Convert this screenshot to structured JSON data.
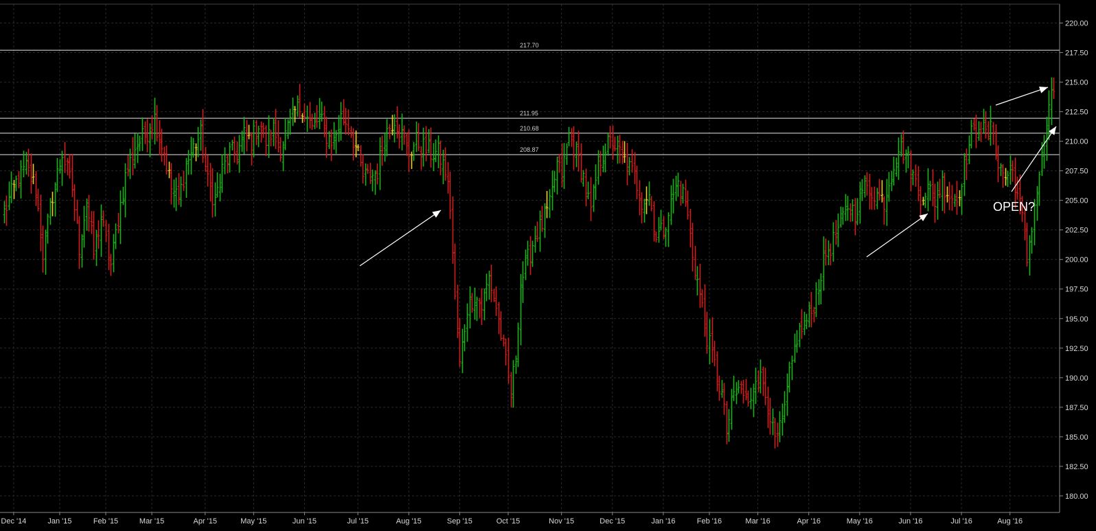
{
  "chart_data": {
    "type": "ohlc",
    "title": "",
    "xlabel": "",
    "ylabel": "",
    "ylim": [
      178.6,
      221.6
    ],
    "y_ticks": [
      "180.00",
      "182.50",
      "185.00",
      "187.50",
      "190.00",
      "192.50",
      "195.00",
      "197.50",
      "200.00",
      "202.50",
      "205.00",
      "207.50",
      "210.00",
      "212.50",
      "215.00",
      "217.50",
      "220.00"
    ],
    "x_ticks": [
      {
        "label": "Dec '14",
        "index": 4
      },
      {
        "label": "Jan '15",
        "index": 23
      },
      {
        "label": "Feb '15",
        "index": 42
      },
      {
        "label": "Mar '15",
        "index": 61
      },
      {
        "label": "Apr '15",
        "index": 83
      },
      {
        "label": "May '15",
        "index": 103
      },
      {
        "label": "Jun '15",
        "index": 124
      },
      {
        "label": "Jul '15",
        "index": 146
      },
      {
        "label": "Aug '15",
        "index": 167
      },
      {
        "label": "Sep '15",
        "index": 188
      },
      {
        "label": "Oct '15",
        "index": 208
      },
      {
        "label": "Nov '15",
        "index": 230
      },
      {
        "label": "Dec '15",
        "index": 251
      },
      {
        "label": "Jan '16",
        "index": 272
      },
      {
        "label": "Feb '16",
        "index": 291
      },
      {
        "label": "Mar '16",
        "index": 311
      },
      {
        "label": "Apr '16",
        "index": 332
      },
      {
        "label": "May '16",
        "index": 353
      },
      {
        "label": "Jun '16",
        "index": 374
      },
      {
        "label": "Jul '16",
        "index": 395
      },
      {
        "label": "Aug '16",
        "index": 415
      }
    ],
    "bar_count": 434,
    "close_anchors": [
      [
        0,
        204.0
      ],
      [
        5,
        206.5
      ],
      [
        9,
        207.8
      ],
      [
        13,
        206.0
      ],
      [
        16,
        200.5
      ],
      [
        20,
        205.5
      ],
      [
        24,
        209.0
      ],
      [
        28,
        206.0
      ],
      [
        31,
        201.0
      ],
      [
        34,
        205.0
      ],
      [
        37,
        200.5
      ],
      [
        40,
        203.5
      ],
      [
        44,
        199.5
      ],
      [
        47,
        203.5
      ],
      [
        50,
        207.0
      ],
      [
        54,
        209.5
      ],
      [
        58,
        210.5
      ],
      [
        62,
        212.0
      ],
      [
        66,
        209.0
      ],
      [
        69,
        206.0
      ],
      [
        72,
        205.0
      ],
      [
        75,
        208.0
      ],
      [
        78,
        209.5
      ],
      [
        81,
        210.5
      ],
      [
        84,
        206.5
      ],
      [
        87,
        205.0
      ],
      [
        90,
        207.5
      ],
      [
        93,
        209.0
      ],
      [
        96,
        209.0
      ],
      [
        99,
        210.5
      ],
      [
        102,
        210.0
      ],
      [
        105,
        211.5
      ],
      [
        108,
        210.0
      ],
      [
        111,
        211.0
      ],
      [
        114,
        209.5
      ],
      [
        117,
        211.0
      ],
      [
        120,
        212.5
      ],
      [
        123,
        213.0
      ],
      [
        127,
        211.0
      ],
      [
        130,
        212.0
      ],
      [
        133,
        210.5
      ],
      [
        136,
        210.0
      ],
      [
        139,
        212.0
      ],
      [
        142,
        211.5
      ],
      [
        145,
        209.5
      ],
      [
        148,
        207.0
      ],
      [
        151,
        207.0
      ],
      [
        154,
        207.5
      ],
      [
        157,
        210.5
      ],
      [
        161,
        212.0
      ],
      [
        164,
        210.5
      ],
      [
        167,
        209.0
      ],
      [
        170,
        210.0
      ],
      [
        173,
        209.5
      ],
      [
        176,
        209.0
      ],
      [
        179,
        209.0
      ],
      [
        182,
        207.5
      ],
      [
        184,
        204.5
      ],
      [
        186,
        196.5
      ],
      [
        188,
        191.0
      ],
      [
        191,
        196.0
      ],
      [
        194,
        197.0
      ],
      [
        197,
        196.0
      ],
      [
        200,
        198.5
      ],
      [
        203,
        196.0
      ],
      [
        206,
        192.5
      ],
      [
        209,
        188.5
      ],
      [
        211,
        192.0
      ],
      [
        213,
        198.0
      ],
      [
        216,
        200.0
      ],
      [
        219,
        202.0
      ],
      [
        222,
        203.0
      ],
      [
        225,
        204.5
      ],
      [
        228,
        208.0
      ],
      [
        230,
        207.0
      ],
      [
        233,
        210.5
      ],
      [
        236,
        209.0
      ],
      [
        239,
        207.0
      ],
      [
        242,
        204.0
      ],
      [
        245,
        208.0
      ],
      [
        248,
        209.5
      ],
      [
        251,
        210.0
      ],
      [
        254,
        209.0
      ],
      [
        257,
        208.0
      ],
      [
        260,
        207.0
      ],
      [
        263,
        205.0
      ],
      [
        266,
        205.5
      ],
      [
        269,
        202.0
      ],
      [
        272,
        202.5
      ],
      [
        275,
        205.0
      ],
      [
        278,
        206.5
      ],
      [
        281,
        205.0
      ],
      [
        284,
        200.5
      ],
      [
        287,
        197.0
      ],
      [
        290,
        193.5
      ],
      [
        293,
        191.0
      ],
      [
        296,
        188.5
      ],
      [
        298,
        185.5
      ],
      [
        301,
        188.5
      ],
      [
        304,
        189.0
      ],
      [
        307,
        187.5
      ],
      [
        310,
        190.5
      ],
      [
        313,
        189.5
      ],
      [
        316,
        187.0
      ],
      [
        318,
        184.5
      ],
      [
        321,
        186.0
      ],
      [
        324,
        190.0
      ],
      [
        327,
        193.5
      ],
      [
        330,
        194.5
      ],
      [
        333,
        195.5
      ],
      [
        336,
        198.0
      ],
      [
        339,
        200.5
      ],
      [
        342,
        201.5
      ],
      [
        345,
        203.0
      ],
      [
        348,
        204.5
      ],
      [
        351,
        204.0
      ],
      [
        354,
        206.0
      ],
      [
        357,
        206.0
      ],
      [
        360,
        205.5
      ],
      [
        363,
        205.0
      ],
      [
        366,
        207.5
      ],
      [
        369,
        209.5
      ],
      [
        372,
        209.0
      ],
      [
        375,
        207.0
      ],
      [
        378,
        205.5
      ],
      [
        381,
        206.0
      ],
      [
        384,
        205.0
      ],
      [
        387,
        206.5
      ],
      [
        390,
        205.5
      ],
      [
        393,
        205.0
      ],
      [
        396,
        208.0
      ],
      [
        399,
        210.5
      ],
      [
        402,
        211.5
      ],
      [
        405,
        210.5
      ],
      [
        408,
        211.0
      ],
      [
        410,
        208.0
      ],
      [
        413,
        207.0
      ],
      [
        416,
        207.5
      ],
      [
        418,
        205.5
      ],
      [
        420,
        203.5
      ],
      [
        422,
        200.0
      ],
      [
        424,
        203.0
      ],
      [
        426,
        206.0
      ],
      [
        428,
        208.5
      ],
      [
        430,
        211.5
      ],
      [
        432,
        213.5
      ],
      [
        434,
        215.0
      ]
    ],
    "price_lines": [
      {
        "value": 217.7,
        "label": "217.70"
      },
      {
        "value": 211.95,
        "label": "211.95"
      },
      {
        "value": 210.68,
        "label": "210.68"
      },
      {
        "value": 208.87,
        "label": "208.87"
      }
    ],
    "colors": {
      "up": "#18b418",
      "down": "#d41e1e",
      "doji": "#f0d020",
      "background": "#000000",
      "grid": "#2a2a2a",
      "price_line": "#e8e8e8",
      "text": "#d8d8d8"
    },
    "grid": true,
    "legend": "none",
    "annotations": [
      {
        "text": "OPEN?",
        "kind": "label"
      }
    ]
  }
}
